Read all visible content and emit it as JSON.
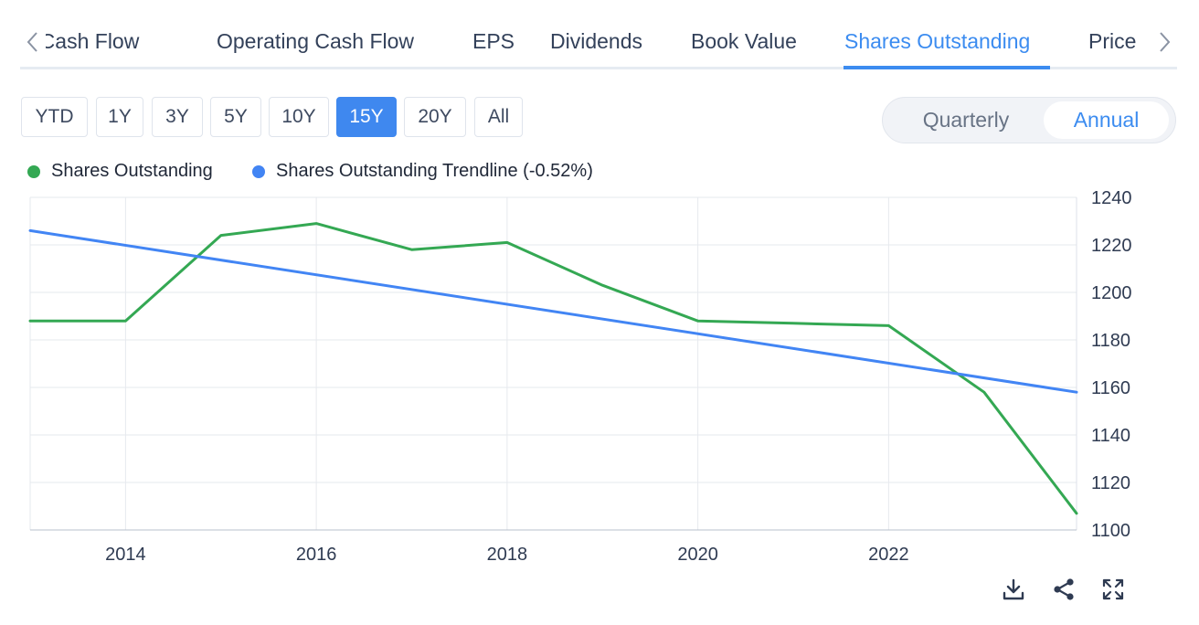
{
  "tabs": {
    "items": [
      {
        "label": "Free Cash Flow",
        "active": false
      },
      {
        "label": "Operating Cash Flow",
        "active": false
      },
      {
        "label": "EPS",
        "active": false
      },
      {
        "label": "Dividends",
        "active": false
      },
      {
        "label": "Book Value",
        "active": false
      },
      {
        "label": "Shares Outstanding",
        "active": true
      },
      {
        "label": "Price",
        "active": false
      }
    ],
    "prev_icon": "chevron-left-icon",
    "next_icon": "chevron-right-icon"
  },
  "ranges": {
    "items": [
      "YTD",
      "1Y",
      "3Y",
      "5Y",
      "10Y",
      "15Y",
      "20Y",
      "All"
    ],
    "selected": "15Y"
  },
  "period": {
    "options": [
      "Quarterly",
      "Annual"
    ],
    "selected": "Annual"
  },
  "legend": {
    "items": [
      {
        "label": "Shares Outstanding",
        "color": "#34a853"
      },
      {
        "label": "Shares Outstanding Trendline (-0.52%)",
        "color": "#4285f4"
      }
    ]
  },
  "chart_data": {
    "type": "line",
    "x_range": [
      2013,
      2023.97
    ],
    "ylim": [
      1100,
      1240
    ],
    "x_ticks": [
      2014,
      2016,
      2018,
      2020,
      2022
    ],
    "y_ticks": [
      1100,
      1120,
      1140,
      1160,
      1180,
      1200,
      1220,
      1240
    ],
    "y_axis_position": "right",
    "grid": true,
    "legend_position": "top-left",
    "series": [
      {
        "name": "Shares Outstanding",
        "color": "#34a853",
        "x": [
          2013,
          2014,
          2015,
          2016,
          2017,
          2018,
          2019,
          2020,
          2021,
          2022,
          2023,
          2023.97
        ],
        "y": [
          1188,
          1188,
          1224,
          1229,
          1218,
          1221,
          1203,
          1188,
          1187,
          1186,
          1158,
          1107
        ]
      },
      {
        "name": "Shares Outstanding Trendline (-0.52%)",
        "color": "#4285f4",
        "x": [
          2013,
          2023.97
        ],
        "y": [
          1226,
          1158
        ]
      }
    ]
  },
  "toolbar": {
    "icons": [
      "download-icon",
      "share-icon",
      "fullscreen-icon"
    ]
  }
}
